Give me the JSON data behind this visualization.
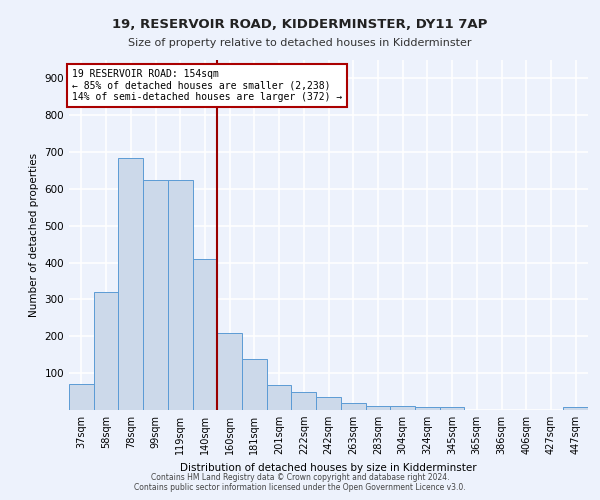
{
  "title1": "19, RESERVOIR ROAD, KIDDERMINSTER, DY11 7AP",
  "title2": "Size of property relative to detached houses in Kidderminster",
  "xlabel": "Distribution of detached houses by size in Kidderminster",
  "ylabel": "Number of detached properties",
  "categories": [
    "37sqm",
    "58sqm",
    "78sqm",
    "99sqm",
    "119sqm",
    "140sqm",
    "160sqm",
    "181sqm",
    "201sqm",
    "222sqm",
    "242sqm",
    "263sqm",
    "283sqm",
    "304sqm",
    "324sqm",
    "345sqm",
    "365sqm",
    "386sqm",
    "406sqm",
    "427sqm",
    "447sqm"
  ],
  "values": [
    70,
    320,
    685,
    625,
    625,
    410,
    210,
    138,
    68,
    48,
    35,
    20,
    12,
    12,
    8,
    8,
    0,
    0,
    0,
    0,
    8
  ],
  "bar_color": "#ccd9ea",
  "bar_edge_color": "#5b9bd5",
  "vline_index": 6,
  "property_line_label": "19 RESERVOIR ROAD: 154sqm",
  "annotation_line1": "← 85% of detached houses are smaller (2,238)",
  "annotation_line2": "14% of semi-detached houses are larger (372) →",
  "vline_color": "#990000",
  "annotation_box_color": "#ffffff",
  "annotation_box_edge": "#aa0000",
  "background_color": "#edf2fc",
  "grid_color": "#ffffff",
  "footer_line1": "Contains HM Land Registry data © Crown copyright and database right 2024.",
  "footer_line2": "Contains public sector information licensed under the Open Government Licence v3.0.",
  "ylim": [
    0,
    950
  ],
  "yticks": [
    0,
    100,
    200,
    300,
    400,
    500,
    600,
    700,
    800,
    900
  ]
}
